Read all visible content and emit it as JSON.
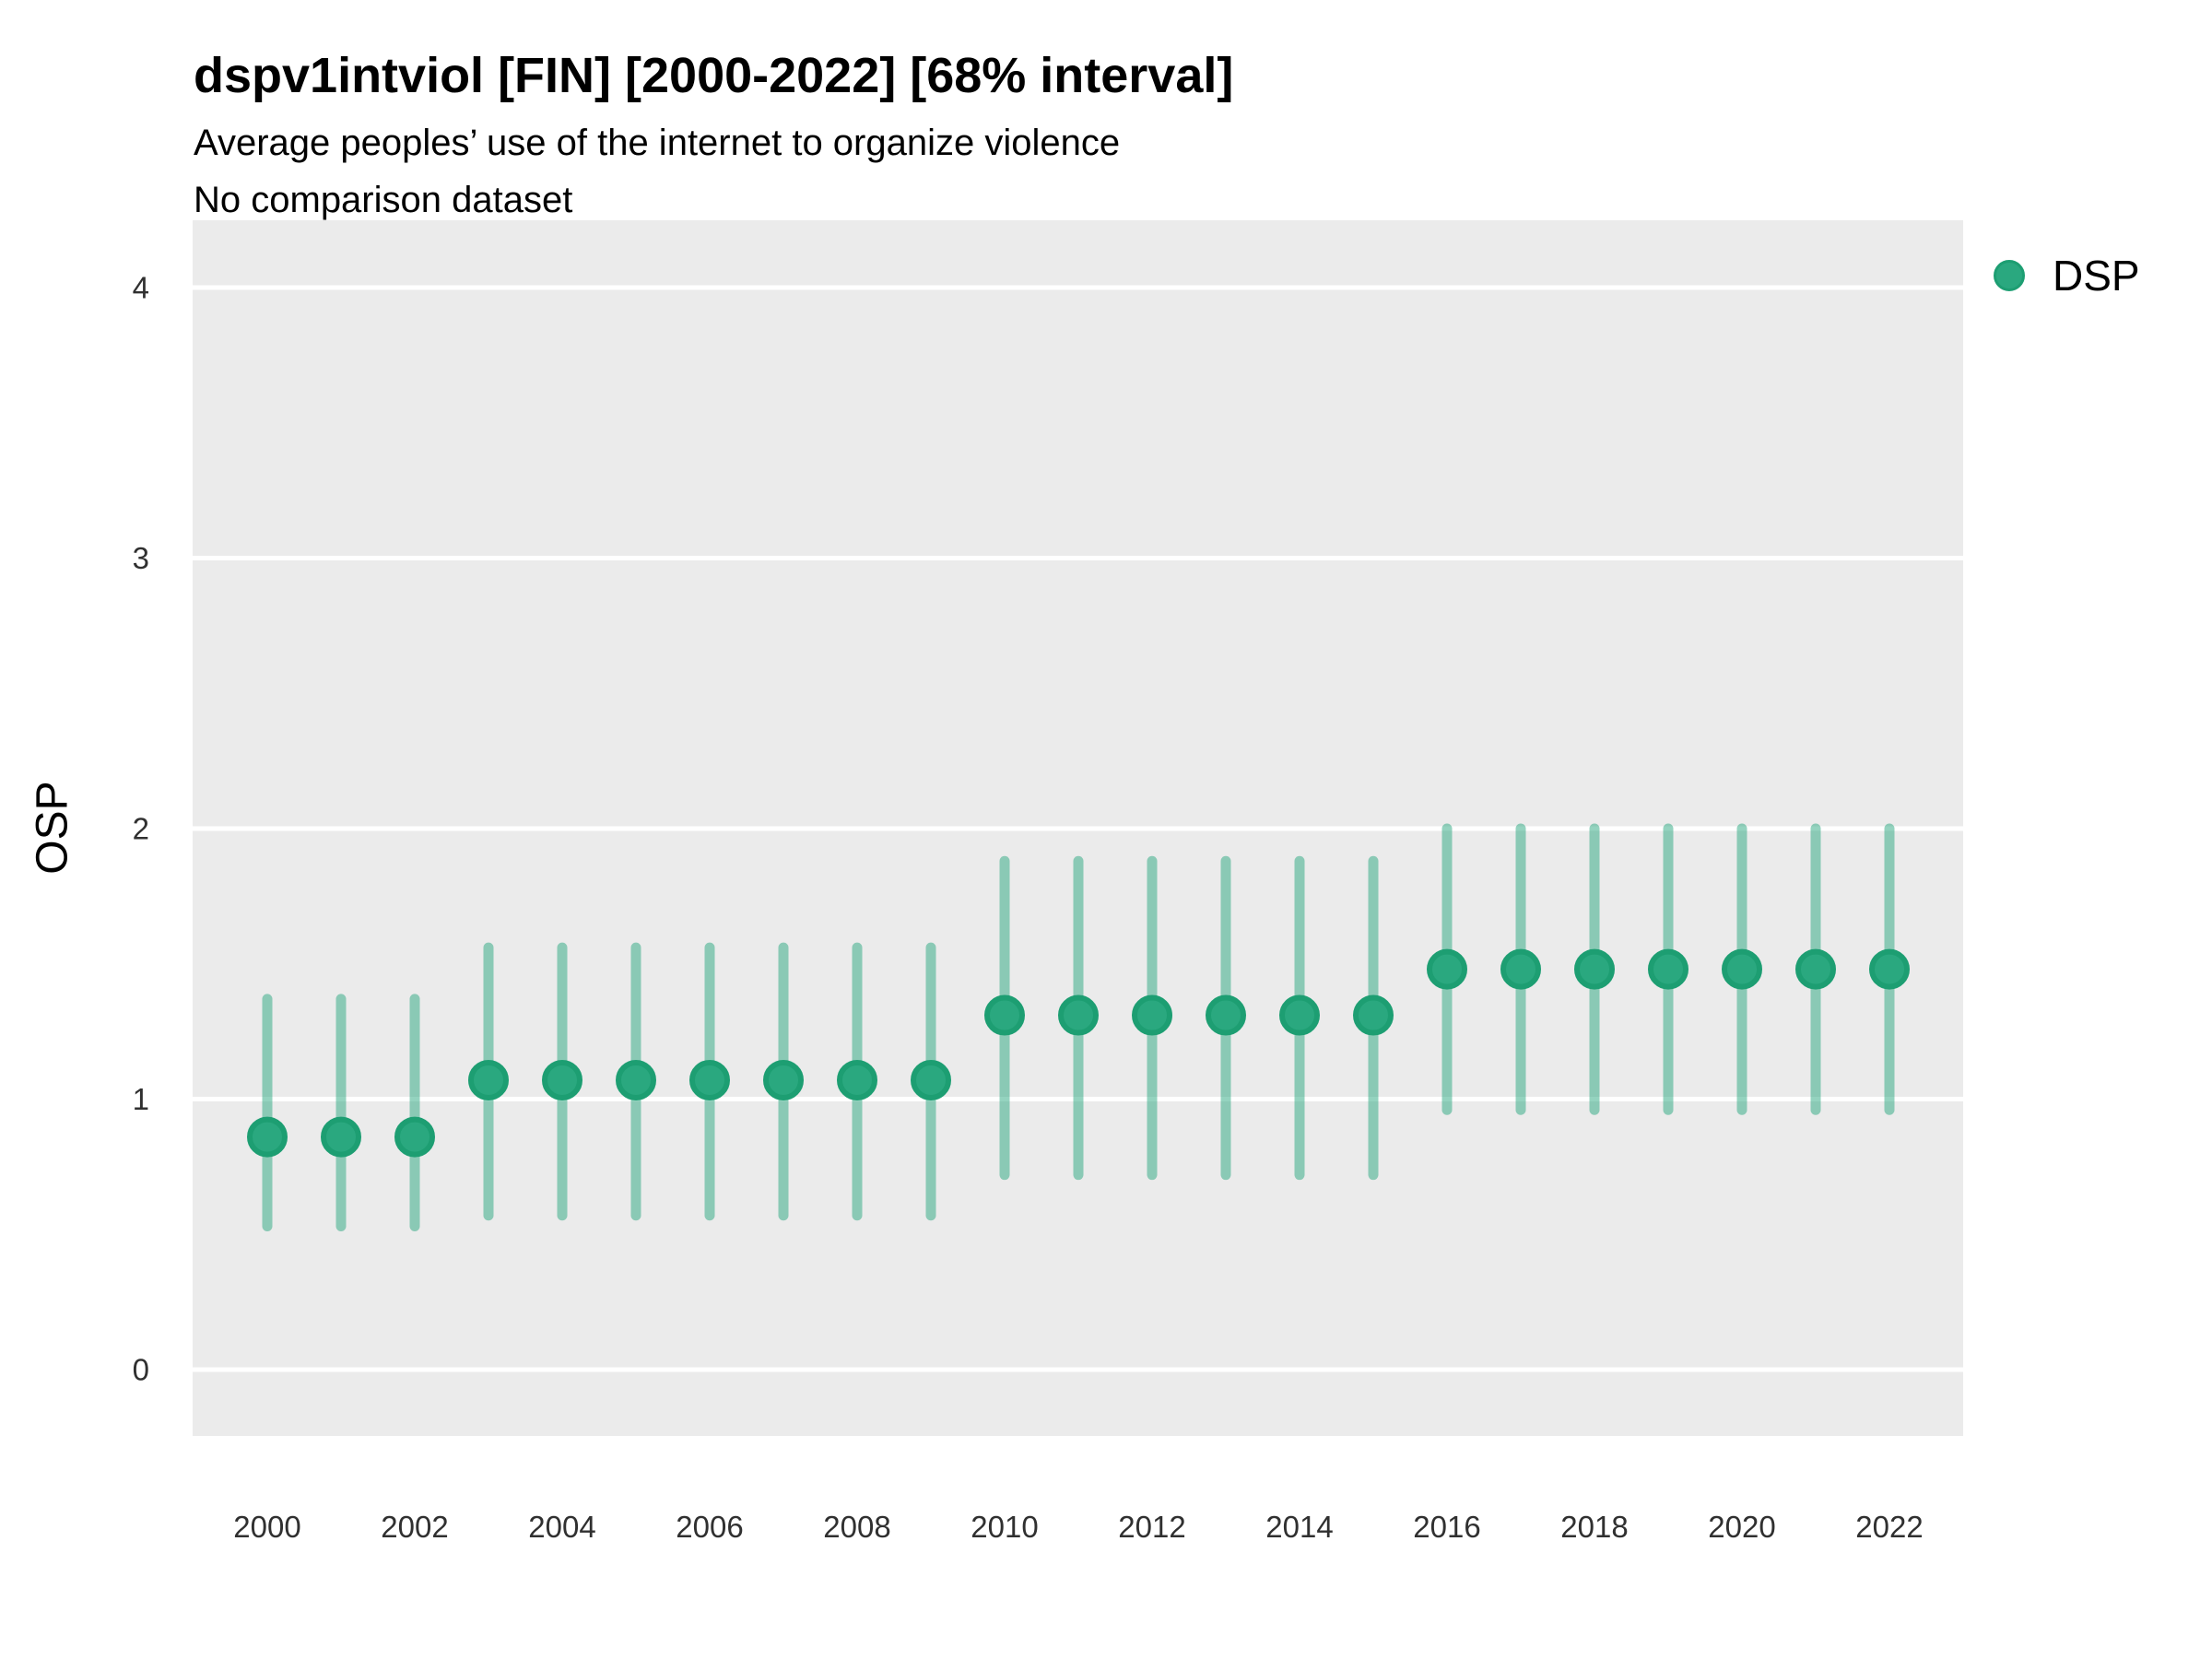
{
  "chart_data": {
    "type": "pointrange",
    "title": "dspv1intviol [FIN] [2000-2022] [68% interval]",
    "subtitle": "Average peoples’ use of the internet to organize violence",
    "note": "No comparison dataset",
    "ylabel": "OSP",
    "interval_level": "68%",
    "ylim": [
      -0.25,
      4.25
    ],
    "yticks": [
      0,
      1,
      2,
      3,
      4
    ],
    "xticks": [
      2000,
      2002,
      2004,
      2006,
      2008,
      2010,
      2012,
      2014,
      2016,
      2018,
      2020,
      2022
    ],
    "grid": "major-horizontal-white-on-grey-panel",
    "panel_color": "#ebebeb",
    "gridline_color": "#ffffff",
    "legend": {
      "position": "right",
      "entries": [
        {
          "label": "DSP",
          "color": "#2aa87f"
        }
      ]
    },
    "series": [
      {
        "name": "DSP",
        "color": "#2aa87f",
        "interval_color": "rgba(42,168,127,0.5)",
        "points": [
          {
            "year": 2000,
            "value": 0.86,
            "lo": 0.53,
            "hi": 1.37
          },
          {
            "year": 2001,
            "value": 0.86,
            "lo": 0.53,
            "hi": 1.37
          },
          {
            "year": 2002,
            "value": 0.86,
            "lo": 0.53,
            "hi": 1.37
          },
          {
            "year": 2003,
            "value": 1.07,
            "lo": 0.57,
            "hi": 1.56
          },
          {
            "year": 2004,
            "value": 1.07,
            "lo": 0.57,
            "hi": 1.56
          },
          {
            "year": 2005,
            "value": 1.07,
            "lo": 0.57,
            "hi": 1.56
          },
          {
            "year": 2006,
            "value": 1.07,
            "lo": 0.57,
            "hi": 1.56
          },
          {
            "year": 2007,
            "value": 1.07,
            "lo": 0.57,
            "hi": 1.56
          },
          {
            "year": 2008,
            "value": 1.07,
            "lo": 0.57,
            "hi": 1.56
          },
          {
            "year": 2009,
            "value": 1.07,
            "lo": 0.57,
            "hi": 1.56
          },
          {
            "year": 2010,
            "value": 1.31,
            "lo": 0.72,
            "hi": 1.88
          },
          {
            "year": 2011,
            "value": 1.31,
            "lo": 0.72,
            "hi": 1.88
          },
          {
            "year": 2012,
            "value": 1.31,
            "lo": 0.72,
            "hi": 1.88
          },
          {
            "year": 2013,
            "value": 1.31,
            "lo": 0.72,
            "hi": 1.88
          },
          {
            "year": 2014,
            "value": 1.31,
            "lo": 0.72,
            "hi": 1.88
          },
          {
            "year": 2015,
            "value": 1.31,
            "lo": 0.72,
            "hi": 1.88
          },
          {
            "year": 2016,
            "value": 1.48,
            "lo": 0.96,
            "hi": 2.0
          },
          {
            "year": 2017,
            "value": 1.48,
            "lo": 0.96,
            "hi": 2.0
          },
          {
            "year": 2018,
            "value": 1.48,
            "lo": 0.96,
            "hi": 2.0
          },
          {
            "year": 2019,
            "value": 1.48,
            "lo": 0.96,
            "hi": 2.0
          },
          {
            "year": 2020,
            "value": 1.48,
            "lo": 0.96,
            "hi": 2.0
          },
          {
            "year": 2021,
            "value": 1.48,
            "lo": 0.96,
            "hi": 2.0
          },
          {
            "year": 2022,
            "value": 1.48,
            "lo": 0.96,
            "hi": 2.0
          }
        ]
      }
    ]
  }
}
